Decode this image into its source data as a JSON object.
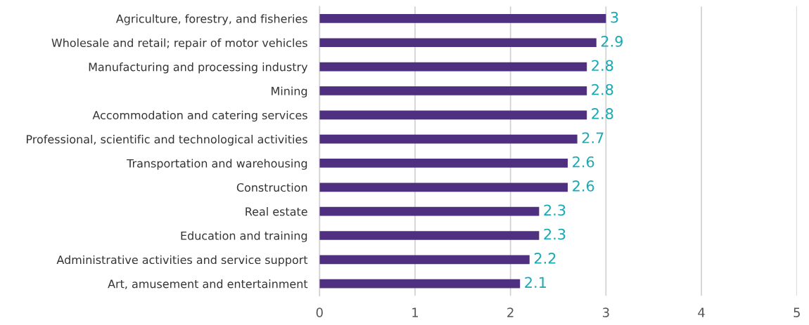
{
  "chart_data": {
    "type": "bar",
    "orientation": "horizontal",
    "categories": [
      "Agriculture, forestry, and fisheries",
      "Wholesale and retail; repair of motor vehicles",
      "Manufacturing and processing industry",
      "Mining",
      "Accommodation and catering services",
      "Professional, scientific and technological activities",
      "Transportation and warehousing",
      "Construction",
      "Real estate",
      "Education and training",
      "Administrative activities and service support",
      "Art, amusement and entertainment"
    ],
    "values": [
      3,
      2.9,
      2.8,
      2.8,
      2.8,
      2.7,
      2.6,
      2.6,
      2.3,
      2.3,
      2.2,
      2.1
    ],
    "color": "#4e2f80",
    "data_labels": true,
    "xlim": [
      0,
      5
    ],
    "xticks": [
      0,
      1,
      2,
      3,
      4,
      5
    ],
    "grid": "x"
  }
}
